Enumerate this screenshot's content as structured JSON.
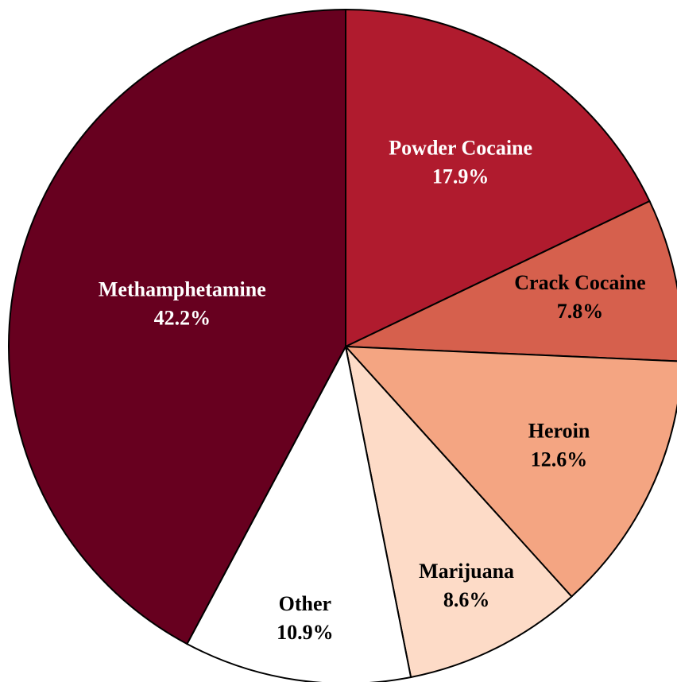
{
  "chart_data": {
    "type": "pie",
    "categories": [
      "Powder Cocaine",
      "Crack Cocaine",
      "Heroin",
      "Marijuana",
      "Other",
      "Methamphetamine"
    ],
    "values": [
      17.9,
      7.8,
      12.6,
      8.6,
      10.9,
      42.2
    ],
    "value_labels": [
      "17.9%",
      "7.8%",
      "12.6%",
      "8.6%",
      "10.9%",
      "42.2%"
    ],
    "colors": [
      "#b01b2e",
      "#d6604d",
      "#f4a582",
      "#fddbc7",
      "#ffffff",
      "#67001f"
    ]
  }
}
